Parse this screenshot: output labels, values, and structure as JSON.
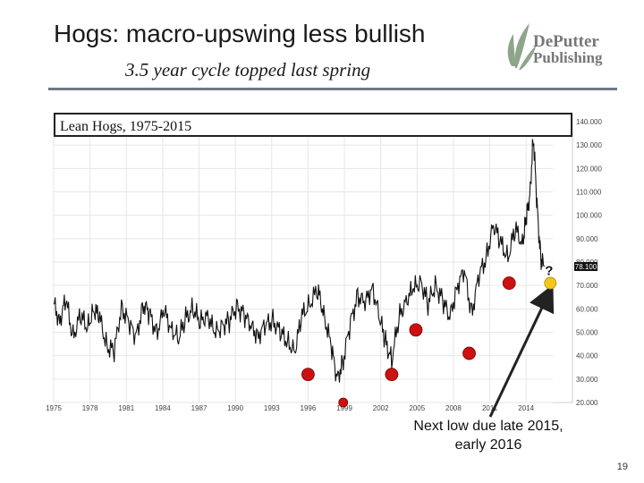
{
  "slide": {
    "title": "Hogs: macro-upswing less bullish",
    "subtitle": "3.5 year cycle topped last spring",
    "annotation_line1": "Next low due late 2015,",
    "annotation_line2": "early 2016",
    "page_number": "19",
    "question_mark": "?"
  },
  "logo": {
    "line1": "DePutter",
    "line2": "Publishing"
  },
  "colors": {
    "rule": "#6c7a89",
    "cycle_low_marker": "#cc1111",
    "next_low_marker": "#f5c518",
    "series": "#111111",
    "grid": "#e6e6e6"
  },
  "chart_data": {
    "type": "line",
    "title": "Lean Hogs, 1975-2015",
    "x_range": [
      1975,
      2016.2
    ],
    "ylim": [
      20000,
      140000
    ],
    "x_tick_labels": [
      "1975",
      "1978",
      "1981",
      "1984",
      "1987",
      "1990",
      "1993",
      "1996",
      "1999",
      "2002",
      "2005",
      "2008",
      "2011",
      "2014"
    ],
    "x_tick_values": [
      1975,
      1978,
      1981,
      1984,
      1987,
      1990,
      1993,
      1996,
      1999,
      2002,
      2005,
      2008,
      2011,
      2014
    ],
    "y_tick_labels": [
      "20.000",
      "30.000",
      "40.000",
      "50.000",
      "60.000",
      "70.000",
      "80.000",
      "90.000",
      "100.000",
      "110.000",
      "120.000",
      "130.000",
      "140.000"
    ],
    "y_tick_values": [
      20000,
      30000,
      40000,
      50000,
      60000,
      70000,
      80000,
      90000,
      100000,
      110000,
      120000,
      130000,
      140000
    ],
    "current_price_label": "78.100",
    "current_price": 78100,
    "series": [
      {
        "name": "Lean Hogs",
        "x": [
          1975.0,
          1975.5,
          1976.0,
          1976.6,
          1977.2,
          1977.8,
          1978.3,
          1978.8,
          1979.4,
          1980.0,
          1980.6,
          1981.2,
          1981.8,
          1982.4,
          1982.9,
          1983.5,
          1984.1,
          1984.7,
          1985.3,
          1985.9,
          1986.5,
          1987.1,
          1987.7,
          1988.3,
          1988.9,
          1989.5,
          1990.1,
          1990.7,
          1991.3,
          1991.9,
          1992.5,
          1993.1,
          1993.7,
          1994.3,
          1994.9,
          1995.5,
          1996.1,
          1996.8,
          1997.3,
          1997.9,
          1998.4,
          1998.9,
          1999.5,
          2000.1,
          2000.7,
          2001.3,
          2001.9,
          2002.4,
          2002.9,
          2003.5,
          2004.1,
          2004.7,
          2005.3,
          2005.9,
          2006.5,
          2007.1,
          2007.7,
          2008.3,
          2008.9,
          2009.5,
          2010.1,
          2010.7,
          2011.3,
          2011.9,
          2012.5,
          2013.1,
          2013.7,
          2014.0,
          2014.3,
          2014.6,
          2014.9,
          2015.2,
          2015.5
        ],
        "values": [
          62000,
          55000,
          64000,
          48000,
          57000,
          52000,
          60000,
          56000,
          44000,
          42000,
          61000,
          54000,
          48000,
          62000,
          58000,
          50000,
          59000,
          52000,
          47000,
          56000,
          60000,
          54000,
          58000,
          49000,
          53000,
          55000,
          61000,
          58000,
          52000,
          49000,
          53000,
          55000,
          50000,
          46000,
          42000,
          57000,
          62000,
          68000,
          58000,
          44000,
          30000,
          38000,
          54000,
          66000,
          62000,
          70000,
          56000,
          46000,
          38000,
          56000,
          64000,
          68000,
          72000,
          62000,
          70000,
          64000,
          56000,
          70000,
          76000,
          58000,
          74000,
          82000,
          96000,
          88000,
          82000,
          94000,
          88000,
          98000,
          108000,
          134000,
          104000,
          82000,
          78000
        ]
      }
    ],
    "cycle_lows": [
      {
        "x": 1996.0,
        "value": 32000
      },
      {
        "x": 1998.9,
        "value": 20000
      },
      {
        "x": 2002.9,
        "value": 32000
      },
      {
        "x": 2004.9,
        "value": 51000
      },
      {
        "x": 2009.3,
        "value": 41000
      },
      {
        "x": 2012.6,
        "value": 71000
      }
    ],
    "next_low": {
      "x": 2016.0,
      "value": 71000
    }
  }
}
